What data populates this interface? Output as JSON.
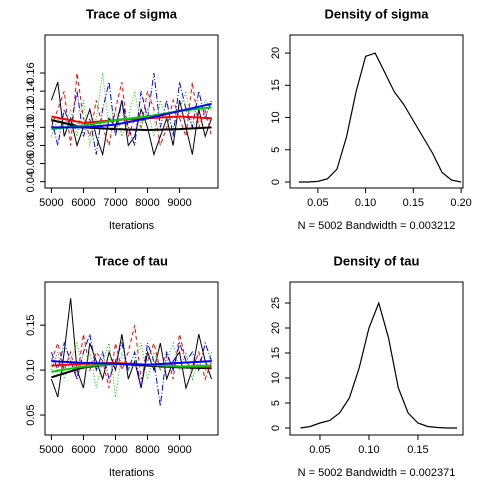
{
  "chart_data": [
    {
      "type": "trace",
      "title": "Trace of sigma",
      "xlabel": "Iterations",
      "x": [
        5000,
        5200,
        5400,
        5600,
        5800,
        6000,
        6200,
        6400,
        6600,
        6800,
        7000,
        7200,
        7400,
        7600,
        7800,
        8000,
        8200,
        8400,
        8600,
        8800,
        9000,
        9200,
        9400,
        9600,
        9800,
        10000
      ],
      "xlim": [
        4800,
        10200
      ],
      "xticks": [
        5000,
        6000,
        7000,
        8000,
        9000
      ],
      "ylim": [
        0.033,
        0.202
      ],
      "yticks": [
        0.04,
        0.06,
        0.08,
        {
          "value": 0.1,
          "label": "0.10"
        },
        0.12,
        0.14,
        0.16
      ],
      "series": [
        {
          "color": "#000000",
          "dash": "none",
          "values": [
            0.13,
            0.15,
            0.09,
            0.11,
            0.08,
            0.1,
            0.12,
            0.09,
            0.07,
            0.11,
            0.1,
            0.13,
            0.08,
            0.09,
            0.12,
            0.1,
            0.07,
            0.09,
            0.11,
            0.08,
            0.13,
            0.1,
            0.07,
            0.12,
            0.09,
            0.11
          ]
        },
        {
          "color": "#ff0000",
          "dash": "4,3",
          "values": [
            0.1,
            0.12,
            0.14,
            0.08,
            0.16,
            0.11,
            0.09,
            0.13,
            0.1,
            0.08,
            0.12,
            0.15,
            0.09,
            0.11,
            0.1,
            0.14,
            0.12,
            0.08,
            0.1,
            0.13,
            0.11,
            0.09,
            0.15,
            0.1,
            0.12,
            0.09
          ]
        },
        {
          "color": "#00cd00",
          "dash": "1,2",
          "values": [
            0.09,
            0.11,
            0.1,
            0.12,
            0.09,
            0.13,
            0.08,
            0.11,
            0.16,
            0.1,
            0.12,
            0.09,
            0.11,
            0.14,
            0.1,
            0.12,
            0.09,
            0.13,
            0.11,
            0.1,
            0.12,
            0.14,
            0.1,
            0.11,
            0.13,
            0.12
          ]
        },
        {
          "color": "#0000ff",
          "dash": "6,2,1,2",
          "values": [
            0.11,
            0.08,
            0.12,
            0.1,
            0.14,
            0.09,
            0.11,
            0.07,
            0.12,
            0.15,
            0.09,
            0.13,
            0.1,
            0.08,
            0.14,
            0.11,
            0.16,
            0.1,
            0.13,
            0.09,
            0.15,
            0.12,
            0.1,
            0.14,
            0.11,
            0.13
          ]
        }
      ],
      "smooth_x": [
        5000,
        6000,
        7000,
        8000,
        9000,
        10000
      ],
      "smooth": [
        {
          "color": "#000000",
          "values": [
            0.108,
            0.1,
            0.098,
            0.097,
            0.098,
            0.1
          ]
        },
        {
          "color": "#ff0000",
          "values": [
            0.112,
            0.105,
            0.108,
            0.11,
            0.112,
            0.11
          ]
        },
        {
          "color": "#00cd00",
          "values": [
            0.098,
            0.102,
            0.108,
            0.112,
            0.118,
            0.122
          ]
        },
        {
          "color": "#0000ff",
          "values": [
            0.1,
            0.1,
            0.103,
            0.11,
            0.118,
            0.126
          ]
        }
      ]
    },
    {
      "type": "density",
      "title": "Density of sigma",
      "xlabel": "N = 5002   Bandwidth = 0.003212",
      "x": [
        0.03,
        0.04,
        0.05,
        0.06,
        0.07,
        0.08,
        0.09,
        0.1,
        0.11,
        0.12,
        0.13,
        0.14,
        0.15,
        0.16,
        0.17,
        0.18,
        0.19,
        0.2
      ],
      "values": [
        0,
        0,
        0.1,
        0.5,
        2,
        7,
        14,
        19.5,
        20,
        17,
        14,
        12,
        9.5,
        7,
        4.5,
        1.5,
        0.3,
        0
      ],
      "xlim": [
        0.0208,
        0.202
      ],
      "xticks": [
        0.05,
        {
          "value": 0.1,
          "label": "0.10"
        },
        0.15,
        {
          "value": 0.2,
          "label": "0.20"
        }
      ],
      "ylim": [
        -0.93,
        22.8
      ],
      "yticks": [
        0,
        5,
        10,
        15,
        20
      ],
      "color": "#000000"
    },
    {
      "type": "trace",
      "title": "Trace of tau",
      "xlabel": "Iterations",
      "x": [
        5000,
        5200,
        5400,
        5600,
        5800,
        6000,
        6200,
        6400,
        6600,
        6800,
        7000,
        7200,
        7400,
        7600,
        7800,
        8000,
        8200,
        8400,
        8600,
        8800,
        9000,
        9200,
        9400,
        9600,
        9800,
        10000
      ],
      "xlim": [
        4800,
        10200
      ],
      "xticks": [
        5000,
        6000,
        7000,
        8000,
        9000
      ],
      "ylim": [
        0.0278,
        0.198
      ],
      "yticks": [
        0.05,
        {
          "value": 0.1,
          "label": "0.10"
        },
        0.15
      ],
      "series": [
        {
          "color": "#000000",
          "dash": "none",
          "values": [
            0.09,
            0.07,
            0.12,
            0.18,
            0.1,
            0.08,
            0.13,
            0.11,
            0.09,
            0.12,
            0.1,
            0.14,
            0.09,
            0.11,
            0.08,
            0.12,
            0.1,
            0.13,
            0.09,
            0.11,
            0.12,
            0.08,
            0.1,
            0.14,
            0.11,
            0.09
          ]
        },
        {
          "color": "#ff0000",
          "dash": "4,3",
          "values": [
            0.11,
            0.13,
            0.1,
            0.12,
            0.09,
            0.14,
            0.1,
            0.12,
            0.11,
            0.08,
            0.13,
            0.1,
            0.12,
            0.15,
            0.09,
            0.11,
            0.13,
            0.1,
            0.12,
            0.09,
            0.14,
            0.11,
            0.1,
            0.12,
            0.09,
            0.11
          ]
        },
        {
          "color": "#00cd00",
          "dash": "1,2",
          "values": [
            0.1,
            0.12,
            0.09,
            0.11,
            0.13,
            0.1,
            0.12,
            0.08,
            0.11,
            0.13,
            0.07,
            0.12,
            0.1,
            0.11,
            0.13,
            0.09,
            0.12,
            0.1,
            0.11,
            0.13,
            0.1,
            0.12,
            0.09,
            0.11,
            0.1,
            0.12
          ]
        },
        {
          "color": "#0000ff",
          "dash": "6,2,1,2",
          "values": [
            0.12,
            0.1,
            0.13,
            0.11,
            0.09,
            0.12,
            0.14,
            0.1,
            0.12,
            0.09,
            0.11,
            0.13,
            0.1,
            0.12,
            0.08,
            0.13,
            0.11,
            0.06,
            0.12,
            0.1,
            0.13,
            0.11,
            0.12,
            0.1,
            0.13,
            0.11
          ]
        }
      ],
      "smooth_x": [
        5000,
        6000,
        7000,
        8000,
        9000,
        10000
      ],
      "smooth": [
        {
          "color": "#000000",
          "values": [
            0.092,
            0.103,
            0.107,
            0.105,
            0.103,
            0.102
          ]
        },
        {
          "color": "#ff0000",
          "values": [
            0.105,
            0.107,
            0.108,
            0.106,
            0.104,
            0.103
          ]
        },
        {
          "color": "#00cd00",
          "values": [
            0.098,
            0.104,
            0.107,
            0.106,
            0.104,
            0.105
          ]
        },
        {
          "color": "#0000ff",
          "values": [
            0.11,
            0.108,
            0.107,
            0.106,
            0.108,
            0.11
          ]
        }
      ]
    },
    {
      "type": "density",
      "title": "Density of tau",
      "xlabel": "N = 5002   Bandwidth = 0.002371",
      "x": [
        0.03,
        0.04,
        0.05,
        0.06,
        0.07,
        0.08,
        0.09,
        0.1,
        0.11,
        0.12,
        0.13,
        0.14,
        0.15,
        0.16,
        0.17,
        0.18,
        0.19
      ],
      "values": [
        0,
        0.3,
        1,
        1.5,
        3,
        6,
        12,
        20,
        25,
        18,
        8,
        3,
        1,
        0.3,
        0.1,
        0,
        0
      ],
      "xlim": [
        0.0194,
        0.196
      ],
      "xticks": [
        0.05,
        {
          "value": 0.1,
          "label": "0.10"
        },
        0.15
      ],
      "ylim": [
        -1.4,
        29.2
      ],
      "yticks": [
        0,
        5,
        10,
        15,
        20,
        25
      ],
      "color": "#000000"
    }
  ]
}
